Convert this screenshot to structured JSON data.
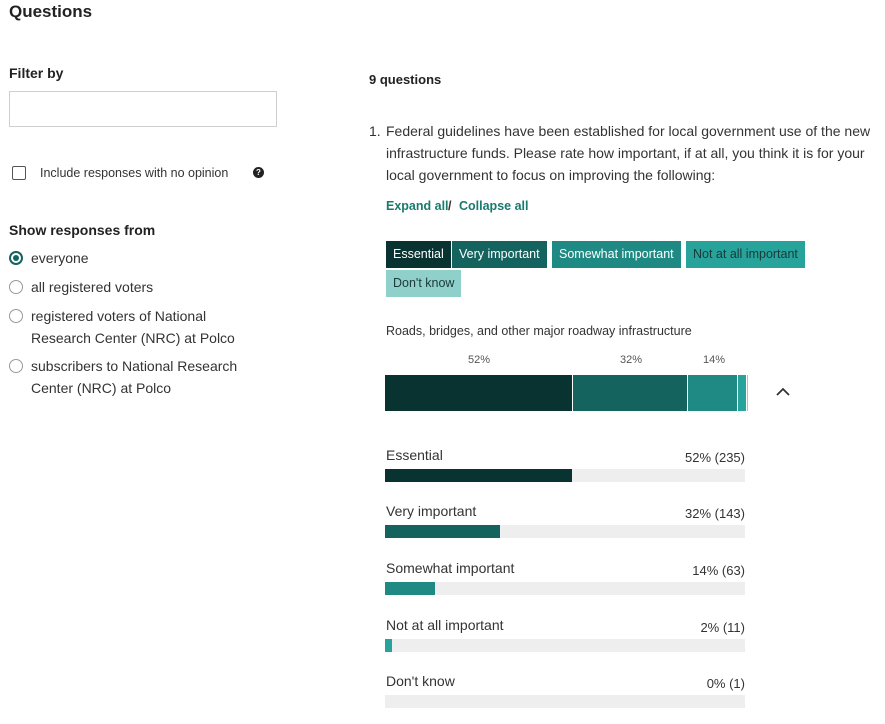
{
  "page": {
    "title": "Questions"
  },
  "filters": {
    "filter_by_label": "Filter by",
    "filter_input_value": "",
    "include_no_opinion_label": "Include responses with no opinion",
    "include_no_opinion_checked": false,
    "show_responses_label": "Show responses from",
    "responses_from": [
      {
        "label": "everyone",
        "selected": true
      },
      {
        "label": "all registered voters",
        "selected": false
      },
      {
        "label": "registered voters of National Research Center (NRC) at Polco",
        "selected": false
      },
      {
        "label": "subscribers to National Research Center (NRC) at Polco",
        "selected": false
      }
    ]
  },
  "questions": {
    "count_label": "9 questions",
    "q1": {
      "number": "1.",
      "text": "Federal guidelines have been established for local government use of the new infrastructure funds. Please rate how important, if at all, you think it is for your local government to focus on improving the following:",
      "expand_all": "Expand all",
      "separator": "/",
      "collapse_all": "Collapse all",
      "legend": [
        {
          "label": "Essential",
          "color": "#083330",
          "text_color": "#ffffff"
        },
        {
          "label": "Very important",
          "color": "#14635f",
          "text_color": "#ffffff"
        },
        {
          "label": "Somewhat important",
          "color": "#1f8a84",
          "text_color": "#ffffff"
        },
        {
          "label": "Not at all important",
          "color": "#27a39b",
          "text_color": "#1a3a38"
        },
        {
          "label": "Don't know",
          "color": "#8fd0cb",
          "text_color": "#1a3a38"
        }
      ],
      "item": {
        "label": "Roads, bridges, and other major roadway infrastructure",
        "percent_labels": [
          "52%",
          "32%",
          "14%"
        ],
        "responses": [
          {
            "label": "Essential",
            "value_text": "52% (235)",
            "fraction": 0.52,
            "count": 235
          },
          {
            "label": "Very important",
            "value_text": "32% (143)",
            "fraction": 0.32,
            "count": 143
          },
          {
            "label": "Somewhat important",
            "value_text": "14% (63)",
            "fraction": 0.14,
            "count": 63
          },
          {
            "label": "Not at all important",
            "value_text": "2% (11)",
            "fraction": 0.02,
            "count": 11
          },
          {
            "label": "Don't know",
            "value_text": "0% (1)",
            "fraction": 0.0,
            "count": 1
          }
        ]
      }
    }
  }
}
